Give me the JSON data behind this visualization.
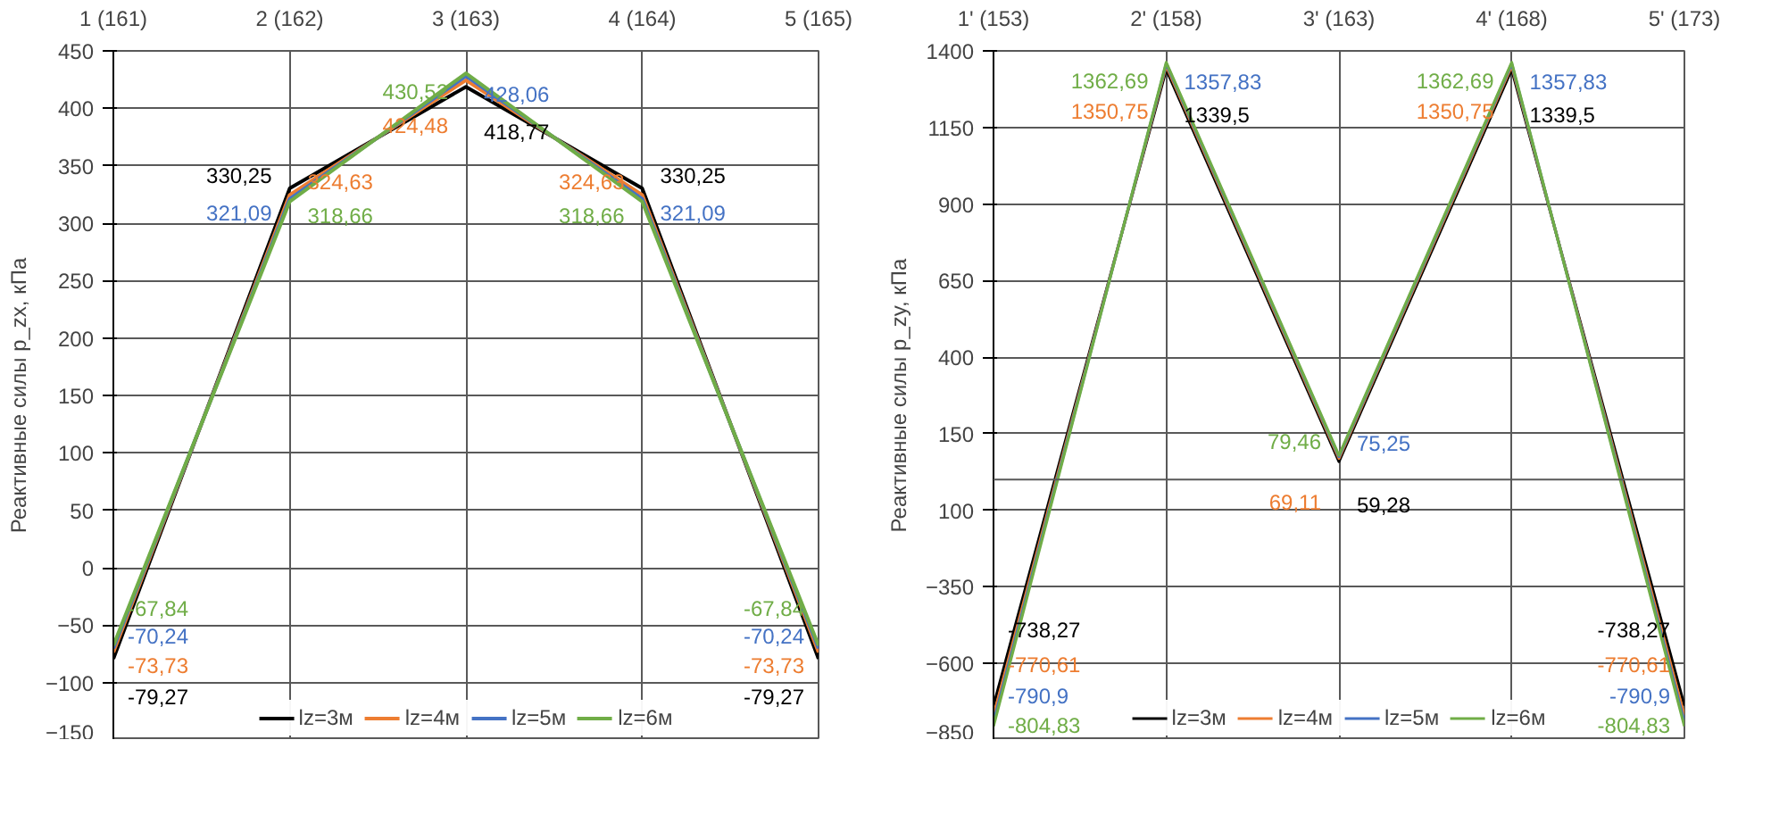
{
  "chart_data": [
    {
      "type": "line",
      "categories": [
        "1 (161)",
        "2 (162)",
        "3 (163)",
        "4 (164)",
        "5 (165)"
      ],
      "ylabel": "Реактивные силы p_zx, кПа",
      "ylim": [
        -150,
        450
      ],
      "yticks": [
        -150,
        -100,
        -50,
        0,
        50,
        100,
        150,
        200,
        250,
        300,
        350,
        400,
        450
      ],
      "grid": true,
      "legend": "bottom",
      "marker": "none",
      "line_style": "solid",
      "series": [
        {
          "name": "lz=3м",
          "color": "#000000",
          "values": [
            -79.27,
            330.25,
            418.77,
            330.25,
            -79.27
          ],
          "value_labels": [
            "-79,27",
            "330,25",
            "418,77",
            "330,25",
            "-79,27"
          ]
        },
        {
          "name": "lz=4м",
          "color": "#ed7d31",
          "values": [
            -73.73,
            324.63,
            424.48,
            324.63,
            -73.73
          ],
          "value_labels": [
            "-73,73",
            "324,63",
            "424,48",
            "324,63",
            "-73,73"
          ]
        },
        {
          "name": "lz=5м",
          "color": "#4472c4",
          "values": [
            -70.24,
            321.09,
            428.06,
            321.09,
            -70.24
          ],
          "value_labels": [
            "-70,24",
            "321,09",
            "428,06",
            "321,09",
            "-70,24"
          ]
        },
        {
          "name": "lz=6м",
          "color": "#70ad47",
          "values": [
            -67.84,
            318.66,
            430.52,
            318.66,
            -67.84
          ],
          "value_labels": [
            "-67,84",
            "318,66",
            "430,52",
            "318,66",
            "-67,84"
          ]
        }
      ]
    },
    {
      "type": "line",
      "categories": [
        "1' (153)",
        "2' (158)",
        "3' (163)",
        "4' (168)",
        "5' (173)"
      ],
      "ylabel": "Реактивные силы p_zy, кПа",
      "ylim": [
        -850,
        1400
      ],
      "yticks": [
        -850,
        -600,
        -350,
        {
          "value": -100,
          "label": "100"
        },
        150,
        400,
        650,
        900,
        1150,
        1400
      ],
      "grid": true,
      "legend": "bottom",
      "marker": "none",
      "line_style": "solid",
      "ref_lines": [
        {
          "axis": "y",
          "value": 0,
          "label": null,
          "color": "#595959"
        }
      ],
      "series": [
        {
          "name": "lz=3м",
          "color": "#000000",
          "values": [
            -738.27,
            1339.5,
            59.28,
            1339.5,
            -738.27
          ],
          "value_labels": [
            "-738,27",
            "1339,5",
            "59,28",
            "1339,5",
            "-738,27"
          ]
        },
        {
          "name": "lz=4м",
          "color": "#ed7d31",
          "values": [
            -770.61,
            1350.75,
            69.11,
            1350.75,
            -770.61
          ],
          "value_labels": [
            "-770,61",
            "1350,75",
            "69,11",
            "1350,75",
            "-770,61"
          ]
        },
        {
          "name": "lz=5м",
          "color": "#4472c4",
          "values": [
            -790.9,
            1357.83,
            75.25,
            1357.83,
            -790.9
          ],
          "value_labels": [
            "-790,9",
            "1357,83",
            "75,25",
            "1357,83",
            "-790,9"
          ]
        },
        {
          "name": "lz=6м",
          "color": "#70ad47",
          "values": [
            -804.83,
            1362.69,
            79.46,
            1362.69,
            -804.83
          ],
          "value_labels": [
            "-804,83",
            "1362,69",
            "79,46",
            "1362,69",
            "-804,83"
          ]
        }
      ]
    }
  ]
}
